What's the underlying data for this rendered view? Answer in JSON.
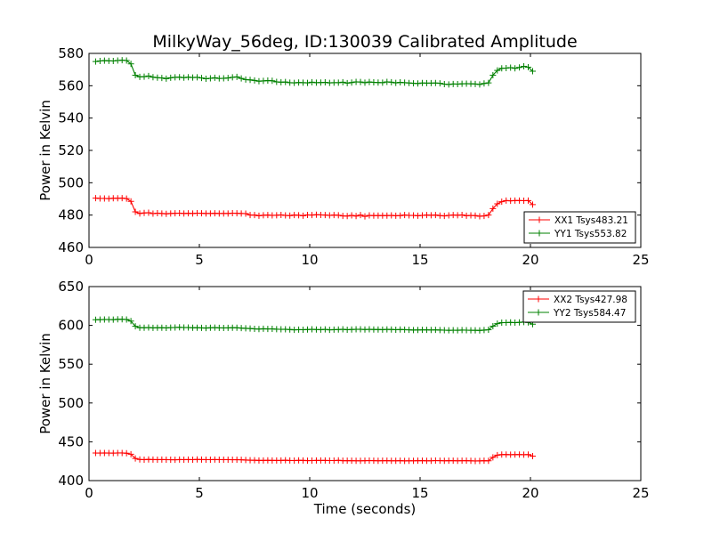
{
  "title": "MilkyWay_56deg, ID:130039 Calibrated Amplitude",
  "colors": {
    "red": "#ff0000",
    "green": "#008000",
    "axis": "#000000",
    "background": "#ffffff"
  },
  "chart_data": [
    {
      "type": "line",
      "xlabel": "",
      "ylabel": "Power in Kelvin",
      "xlim": [
        0,
        25
      ],
      "ylim": [
        460,
        580
      ],
      "xticks": [
        0,
        5,
        10,
        15,
        20,
        25
      ],
      "yticks": [
        460,
        480,
        500,
        520,
        540,
        560,
        580
      ],
      "grid": false,
      "legend_position": "lower-right",
      "marker": "plus",
      "series": [
        {
          "name": "XX1 Tsys483.21",
          "color": "#ff0000",
          "x": [
            0.3,
            0.5,
            0.7,
            0.9,
            1.1,
            1.3,
            1.5,
            1.7,
            1.9,
            2.1,
            2.3,
            2.5,
            2.7,
            2.9,
            3.1,
            3.3,
            3.5,
            3.7,
            3.9,
            4.1,
            4.3,
            4.5,
            4.7,
            4.9,
            5.1,
            5.3,
            5.5,
            5.7,
            5.9,
            6.1,
            6.3,
            6.5,
            6.7,
            6.9,
            7.1,
            7.3,
            7.5,
            7.7,
            7.9,
            8.1,
            8.3,
            8.5,
            8.7,
            8.9,
            9.1,
            9.3,
            9.5,
            9.7,
            9.9,
            10.1,
            10.3,
            10.5,
            10.7,
            10.9,
            11.1,
            11.3,
            11.5,
            11.7,
            11.9,
            12.1,
            12.3,
            12.5,
            12.7,
            12.9,
            13.1,
            13.3,
            13.5,
            13.7,
            13.9,
            14.1,
            14.3,
            14.5,
            14.7,
            14.9,
            15.1,
            15.3,
            15.5,
            15.7,
            15.9,
            16.1,
            16.3,
            16.5,
            16.7,
            16.9,
            17.1,
            17.3,
            17.5,
            17.7,
            17.9,
            18.1,
            18.3,
            18.5,
            18.7,
            18.9,
            19.1,
            19.3,
            19.5,
            19.7,
            19.9,
            20.1
          ],
          "y": [
            490.5,
            490.3,
            490.3,
            490.2,
            490.4,
            490.4,
            490.5,
            490.2,
            488.5,
            482.0,
            481.0,
            481.3,
            481.5,
            480.9,
            481.2,
            481.0,
            480.8,
            481.0,
            481.1,
            481.2,
            481.0,
            481.1,
            481.0,
            481.2,
            481.1,
            481.0,
            481.0,
            481.1,
            481.0,
            481.0,
            481.0,
            481.2,
            481.1,
            481.0,
            480.9,
            480.0,
            480.0,
            479.6,
            479.9,
            480.0,
            479.8,
            479.9,
            480.1,
            479.8,
            479.7,
            480.0,
            479.9,
            479.6,
            480.1,
            480.0,
            480.2,
            480.1,
            480.0,
            479.8,
            480.0,
            479.9,
            479.5,
            479.4,
            479.8,
            479.4,
            480.0,
            479.2,
            479.8,
            479.7,
            479.7,
            479.7,
            479.7,
            479.8,
            479.6,
            479.7,
            480.0,
            479.8,
            479.8,
            479.6,
            479.8,
            480.0,
            479.9,
            480.0,
            479.7,
            479.5,
            479.8,
            480.0,
            479.9,
            480.1,
            479.6,
            479.8,
            479.7,
            479.3,
            479.5,
            480.0,
            484.0,
            487.0,
            488.3,
            489.0,
            488.8,
            489.0,
            489.0,
            488.9,
            489.0,
            486.5
          ]
        },
        {
          "name": "YY1 Tsys553.82",
          "color": "#008000",
          "x": [
            0.3,
            0.5,
            0.7,
            0.9,
            1.1,
            1.3,
            1.5,
            1.7,
            1.9,
            2.1,
            2.3,
            2.5,
            2.7,
            2.9,
            3.1,
            3.3,
            3.5,
            3.7,
            3.9,
            4.1,
            4.3,
            4.5,
            4.7,
            4.9,
            5.1,
            5.3,
            5.5,
            5.7,
            5.9,
            6.1,
            6.3,
            6.5,
            6.7,
            6.9,
            7.1,
            7.3,
            7.5,
            7.7,
            7.9,
            8.1,
            8.3,
            8.5,
            8.7,
            8.9,
            9.1,
            9.3,
            9.5,
            9.7,
            9.9,
            10.1,
            10.3,
            10.5,
            10.7,
            10.9,
            11.1,
            11.3,
            11.5,
            11.7,
            11.9,
            12.1,
            12.3,
            12.5,
            12.7,
            12.9,
            13.1,
            13.3,
            13.5,
            13.7,
            13.9,
            14.1,
            14.3,
            14.5,
            14.7,
            14.9,
            15.1,
            15.3,
            15.5,
            15.7,
            15.9,
            16.1,
            16.3,
            16.5,
            16.7,
            16.9,
            17.1,
            17.3,
            17.5,
            17.7,
            17.9,
            18.1,
            18.3,
            18.5,
            18.7,
            18.9,
            19.1,
            19.3,
            19.5,
            19.7,
            19.9,
            20.1
          ],
          "y": [
            575.0,
            575.3,
            575.5,
            575.4,
            575.3,
            575.6,
            575.8,
            575.6,
            573.5,
            566.5,
            565.5,
            565.6,
            566.0,
            565.3,
            565.0,
            564.8,
            564.4,
            564.9,
            565.2,
            565.3,
            565.0,
            565.3,
            565.1,
            565.2,
            564.8,
            564.3,
            564.6,
            564.9,
            564.5,
            564.6,
            564.8,
            565.2,
            565.5,
            564.5,
            563.8,
            563.6,
            563.3,
            562.8,
            563.0,
            563.2,
            563.1,
            562.4,
            562.2,
            562.3,
            561.9,
            561.8,
            562.0,
            561.9,
            561.8,
            562.2,
            561.9,
            562.0,
            562.1,
            561.8,
            561.9,
            561.9,
            562.2,
            561.6,
            562.0,
            562.4,
            562.3,
            561.9,
            562.3,
            562.1,
            562.0,
            561.9,
            562.4,
            562.2,
            561.8,
            562.1,
            561.9,
            561.7,
            561.5,
            561.4,
            561.7,
            561.6,
            561.6,
            561.7,
            561.5,
            561.0,
            560.8,
            561.1,
            561.0,
            561.2,
            561.3,
            561.2,
            561.1,
            560.8,
            561.4,
            561.8,
            566.5,
            569.5,
            570.8,
            570.9,
            571.2,
            570.8,
            571.3,
            572.0,
            571.5,
            569.0
          ]
        }
      ]
    },
    {
      "type": "line",
      "xlabel": "Time (seconds)",
      "ylabel": "Power in Kelvin",
      "xlim": [
        0,
        25
      ],
      "ylim": [
        400,
        650
      ],
      "xticks": [
        0,
        5,
        10,
        15,
        20,
        25
      ],
      "yticks": [
        400,
        450,
        500,
        550,
        600,
        650
      ],
      "grid": false,
      "legend_position": "upper-right",
      "marker": "plus",
      "series": [
        {
          "name": "XX2 Tsys427.98",
          "color": "#ff0000",
          "x": [
            0.3,
            0.5,
            0.7,
            0.9,
            1.1,
            1.3,
            1.5,
            1.7,
            1.9,
            2.1,
            2.3,
            2.5,
            2.7,
            2.9,
            3.1,
            3.3,
            3.5,
            3.7,
            3.9,
            4.1,
            4.3,
            4.5,
            4.7,
            4.9,
            5.1,
            5.3,
            5.5,
            5.7,
            5.9,
            6.1,
            6.3,
            6.5,
            6.7,
            6.9,
            7.1,
            7.3,
            7.5,
            7.7,
            7.9,
            8.1,
            8.3,
            8.5,
            8.7,
            8.9,
            9.1,
            9.3,
            9.5,
            9.7,
            9.9,
            10.1,
            10.3,
            10.5,
            10.7,
            10.9,
            11.1,
            11.3,
            11.5,
            11.7,
            11.9,
            12.1,
            12.3,
            12.5,
            12.7,
            12.9,
            13.1,
            13.3,
            13.5,
            13.7,
            13.9,
            14.1,
            14.3,
            14.5,
            14.7,
            14.9,
            15.1,
            15.3,
            15.5,
            15.7,
            15.9,
            16.1,
            16.3,
            16.5,
            16.7,
            16.9,
            17.1,
            17.3,
            17.5,
            17.7,
            17.9,
            18.1,
            18.3,
            18.5,
            18.7,
            18.9,
            19.1,
            19.3,
            19.5,
            19.7,
            19.9,
            20.1
          ],
          "y": [
            435.5,
            435.5,
            435.6,
            435.5,
            435.4,
            435.6,
            435.6,
            435.3,
            434.0,
            428.5,
            427.2,
            427.0,
            427.3,
            427.1,
            427.0,
            427.1,
            427.0,
            426.9,
            426.8,
            427.1,
            427.0,
            427.1,
            427.0,
            427.2,
            427.1,
            427.0,
            427.0,
            427.1,
            427.0,
            427.0,
            427.0,
            426.9,
            427.0,
            426.8,
            426.5,
            426.3,
            426.2,
            426.0,
            426.0,
            426.1,
            426.0,
            425.9,
            426.0,
            426.2,
            425.9,
            425.8,
            426.1,
            426.0,
            425.7,
            425.8,
            426.0,
            425.9,
            426.0,
            425.8,
            425.8,
            426.1,
            425.6,
            425.7,
            425.6,
            425.5,
            425.5,
            425.6,
            425.8,
            425.7,
            425.5,
            425.6,
            425.7,
            425.5,
            425.5,
            425.7,
            425.4,
            425.5,
            425.5,
            425.6,
            425.7,
            425.5,
            425.5,
            425.8,
            425.7,
            425.5,
            425.7,
            425.6,
            425.5,
            425.6,
            425.7,
            425.5,
            425.3,
            425.4,
            425.6,
            425.5,
            430.0,
            432.8,
            433.5,
            433.6,
            433.4,
            433.5,
            433.5,
            433.4,
            433.5,
            431.5
          ]
        },
        {
          "name": "YY2 Tsys584.47",
          "color": "#008000",
          "x": [
            0.3,
            0.5,
            0.7,
            0.9,
            1.1,
            1.3,
            1.5,
            1.7,
            1.9,
            2.1,
            2.3,
            2.5,
            2.7,
            2.9,
            3.1,
            3.3,
            3.5,
            3.7,
            3.9,
            4.1,
            4.3,
            4.5,
            4.7,
            4.9,
            5.1,
            5.3,
            5.5,
            5.7,
            5.9,
            6.1,
            6.3,
            6.5,
            6.7,
            6.9,
            7.1,
            7.3,
            7.5,
            7.7,
            7.9,
            8.1,
            8.3,
            8.5,
            8.7,
            8.9,
            9.1,
            9.3,
            9.5,
            9.7,
            9.9,
            10.1,
            10.3,
            10.5,
            10.7,
            10.9,
            11.1,
            11.3,
            11.5,
            11.7,
            11.9,
            12.1,
            12.3,
            12.5,
            12.7,
            12.9,
            13.1,
            13.3,
            13.5,
            13.7,
            13.9,
            14.1,
            14.3,
            14.5,
            14.7,
            14.9,
            15.1,
            15.3,
            15.5,
            15.7,
            15.9,
            16.1,
            16.3,
            16.5,
            16.7,
            16.9,
            17.1,
            17.3,
            17.5,
            17.7,
            17.9,
            18.1,
            18.3,
            18.5,
            18.7,
            18.9,
            19.1,
            19.3,
            19.5,
            19.7,
            19.9,
            20.1
          ],
          "y": [
            607.3,
            607.4,
            607.6,
            607.5,
            607.4,
            607.8,
            607.9,
            607.5,
            605.5,
            598.8,
            597.0,
            597.0,
            597.2,
            596.8,
            596.9,
            597.0,
            596.7,
            597.1,
            597.3,
            597.5,
            597.2,
            597.3,
            596.9,
            597.0,
            596.8,
            596.6,
            596.9,
            597.1,
            596.8,
            596.7,
            596.8,
            597.0,
            596.9,
            596.5,
            596.2,
            595.9,
            595.5,
            595.3,
            595.6,
            595.4,
            595.5,
            595.1,
            594.9,
            595.0,
            594.6,
            594.3,
            594.5,
            594.4,
            594.6,
            594.9,
            594.6,
            594.5,
            594.8,
            594.3,
            594.5,
            594.6,
            594.9,
            594.4,
            594.7,
            594.9,
            595.0,
            594.6,
            594.9,
            594.7,
            594.6,
            594.5,
            594.8,
            594.7,
            594.4,
            594.6,
            594.5,
            594.3,
            594.0,
            594.1,
            594.3,
            594.2,
            594.1,
            594.2,
            594.0,
            593.8,
            593.6,
            593.8,
            593.7,
            593.9,
            593.8,
            593.7,
            593.6,
            593.5,
            593.9,
            594.4,
            599.0,
            602.3,
            603.5,
            603.6,
            603.8,
            603.5,
            603.9,
            604.3,
            603.8,
            601.5
          ]
        }
      ]
    }
  ]
}
